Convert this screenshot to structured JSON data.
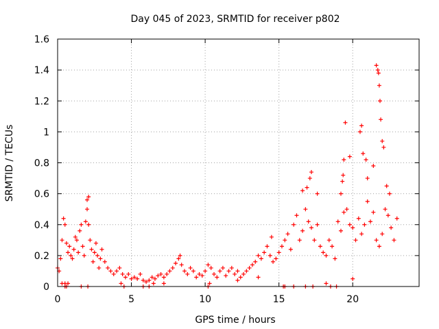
{
  "chart_data": {
    "type": "scatter",
    "title": "Day 045 of 2023, SRMTID for receiver p802",
    "xlabel": "GPS time / hours",
    "ylabel": "SRMTID / TECUs",
    "xlim": [
      0,
      24.5
    ],
    "ylim": [
      0,
      1.6
    ],
    "xticks": [
      "0",
      "5",
      "10",
      "15",
      "20"
    ],
    "xtick_values": [
      0,
      5,
      10,
      15,
      20
    ],
    "yticks": [
      "0",
      "0.2",
      "0.4",
      "0.6",
      "0.8",
      "1",
      "1.2",
      "1.4",
      "1.6"
    ],
    "ytick_values": [
      0,
      0.2,
      0.4,
      0.6,
      0.8,
      1.0,
      1.2,
      1.4,
      1.6
    ],
    "grid": true,
    "marker": "+",
    "color": "#ff0000",
    "series": [
      {
        "name": "SRMTID",
        "x": [
          0.0,
          0.1,
          0.2,
          0.3,
          0.4,
          0.5,
          0.6,
          0.7,
          0.8,
          0.9,
          1.0,
          1.1,
          1.2,
          1.3,
          1.4,
          1.5,
          1.6,
          1.7,
          1.8,
          1.9,
          2.0,
          2.1,
          2.2,
          2.3,
          2.4,
          2.5,
          2.6,
          2.7,
          2.8,
          2.9,
          3.0,
          3.2,
          3.4,
          3.6,
          3.8,
          4.0,
          4.2,
          4.4,
          4.6,
          4.8,
          5.0,
          5.2,
          5.4,
          5.6,
          5.8,
          6.0,
          6.2,
          6.4,
          6.6,
          6.8,
          7.0,
          7.2,
          7.4,
          7.6,
          7.8,
          8.0,
          8.2,
          8.4,
          8.6,
          8.8,
          9.0,
          9.2,
          9.4,
          9.6,
          9.8,
          10.0,
          10.2,
          10.4,
          10.6,
          10.8,
          11.0,
          11.2,
          11.4,
          11.6,
          11.8,
          12.0,
          12.2,
          12.4,
          12.6,
          12.8,
          13.0,
          13.2,
          13.4,
          13.6,
          13.8,
          14.0,
          14.2,
          14.4,
          14.6,
          14.8,
          15.0,
          15.2,
          15.4,
          15.6,
          15.8,
          16.0,
          16.2,
          16.4,
          16.6,
          16.8,
          17.0,
          17.2,
          17.4,
          17.6,
          17.8,
          18.0,
          18.2,
          18.4,
          18.6,
          18.8,
          19.0,
          19.2,
          19.4,
          19.6,
          19.8,
          20.0,
          20.2,
          20.4,
          20.6,
          20.8,
          21.0,
          21.2,
          21.4,
          21.6,
          21.8,
          22.0,
          22.2,
          22.4,
          22.6,
          22.8,
          23.0,
          0.5,
          0.6,
          1.6,
          2.05,
          4.5,
          5.8,
          6.2,
          10.2,
          15.3,
          15.4,
          16.0,
          16.8,
          17.3,
          18.5,
          18.9,
          0.3,
          0.5,
          0.7,
          2.0,
          2.1,
          4.3,
          6.5,
          7.2,
          8.3,
          10.3,
          12.2,
          13.6,
          14.5,
          16.6,
          16.9,
          17.1,
          17.2,
          17.6,
          18.2,
          19.2,
          19.3,
          19.35,
          19.4,
          19.5,
          19.8,
          20.0,
          20.5,
          20.6,
          20.7,
          20.9,
          21.0,
          21.4,
          21.6,
          21.7,
          21.75,
          21.8,
          21.85,
          21.9,
          22.0,
          22.1,
          22.3,
          22.5
        ],
        "y": [
          0.12,
          0.1,
          0.18,
          0.3,
          0.44,
          0.4,
          0.28,
          0.22,
          0.26,
          0.2,
          0.18,
          0.24,
          0.32,
          0.3,
          0.22,
          0.36,
          0.4,
          0.26,
          0.2,
          0.42,
          0.5,
          0.4,
          0.3,
          0.24,
          0.16,
          0.22,
          0.28,
          0.2,
          0.12,
          0.18,
          0.24,
          0.16,
          0.12,
          0.1,
          0.08,
          0.1,
          0.12,
          0.08,
          0.06,
          0.08,
          0.05,
          0.06,
          0.05,
          0.08,
          0.04,
          0.03,
          0.04,
          0.06,
          0.05,
          0.07,
          0.08,
          0.06,
          0.08,
          0.1,
          0.12,
          0.15,
          0.18,
          0.14,
          0.1,
          0.08,
          0.12,
          0.1,
          0.06,
          0.08,
          0.07,
          0.1,
          0.14,
          0.12,
          0.08,
          0.06,
          0.1,
          0.12,
          0.07,
          0.1,
          0.12,
          0.08,
          0.1,
          0.06,
          0.08,
          0.1,
          0.12,
          0.14,
          0.16,
          0.2,
          0.18,
          0.22,
          0.26,
          0.2,
          0.16,
          0.18,
          0.22,
          0.26,
          0.3,
          0.34,
          0.24,
          0.4,
          0.46,
          0.3,
          0.36,
          0.5,
          0.42,
          0.38,
          0.3,
          0.4,
          0.26,
          0.22,
          0.2,
          0.3,
          0.26,
          0.18,
          0.42,
          0.36,
          0.48,
          0.5,
          0.4,
          0.38,
          0.3,
          0.44,
          0.34,
          0.4,
          0.55,
          0.42,
          0.48,
          0.3,
          0.26,
          0.34,
          0.5,
          0.46,
          0.38,
          0.3,
          0.44,
          0.0,
          0.0,
          0.0,
          0.0,
          0.0,
          0.0,
          0.0,
          0.0,
          0.0,
          0.0,
          0.0,
          0.0,
          0.0,
          0.0,
          0.0,
          0.02,
          0.02,
          0.02,
          0.56,
          0.58,
          0.02,
          0.02,
          0.02,
          0.2,
          0.02,
          0.04,
          0.06,
          0.32,
          0.62,
          0.64,
          0.7,
          0.74,
          0.6,
          0.02,
          0.6,
          0.68,
          0.72,
          0.82,
          1.06,
          0.84,
          0.05,
          1.0,
          1.04,
          0.86,
          0.82,
          0.7,
          0.78,
          1.43,
          1.4,
          1.38,
          1.3,
          1.2,
          1.08,
          0.94,
          0.9,
          0.65,
          0.6
        ]
      }
    ]
  }
}
